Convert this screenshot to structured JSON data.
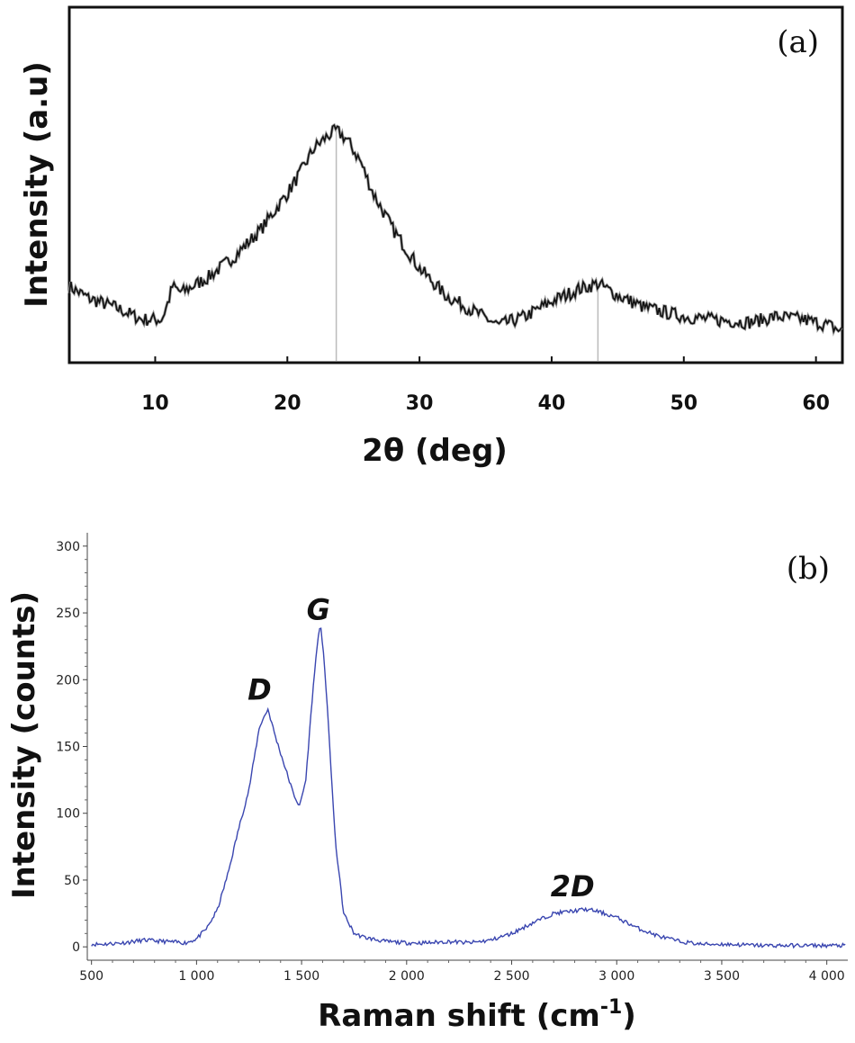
{
  "chart_data": [
    {
      "type": "line",
      "panel_label": "(a)",
      "xlabel": "2θ (deg)",
      "ylabel": "Intensity (a.u)",
      "xlim": [
        3.5,
        62
      ],
      "xticks": [
        10,
        20,
        30,
        40,
        50,
        60
      ],
      "yticks": [],
      "grid": false,
      "line_color": "#111111",
      "marker_color": "#bbbbbb",
      "markers_x": [
        23.7,
        43.5
      ],
      "series": [
        {
          "x": [
            3.5,
            5,
            7,
            9,
            10.5,
            11,
            11.3,
            12,
            14,
            16,
            18,
            20,
            21,
            22,
            23,
            23.7,
            24.5,
            25.5,
            26.5,
            28,
            30,
            32,
            34,
            36,
            38,
            40,
            42,
            43.5,
            45,
            47,
            50,
            52,
            55,
            57,
            59,
            61,
            62
          ],
          "values": [
            0.17,
            0.13,
            0.1,
            0.06,
            0.06,
            0.12,
            0.17,
            0.15,
            0.2,
            0.27,
            0.36,
            0.48,
            0.55,
            0.63,
            0.67,
            0.69,
            0.66,
            0.59,
            0.48,
            0.36,
            0.23,
            0.14,
            0.09,
            0.04,
            0.07,
            0.12,
            0.16,
            0.18,
            0.14,
            0.1,
            0.07,
            0.06,
            0.05,
            0.07,
            0.06,
            0.04,
            0.02
          ]
        }
      ]
    },
    {
      "type": "line",
      "panel_label": "(b)",
      "xlabel": "Raman shift (cm",
      "xlabel_sup": "-1",
      "xlabel_end": ")",
      "ylabel": "Intensity (counts)",
      "xlim": [
        480,
        4100
      ],
      "ylim": [
        -10,
        310
      ],
      "xticks": [
        500,
        1000,
        1500,
        2000,
        2500,
        3000,
        3500,
        4000
      ],
      "xtick_labels": [
        "500",
        "1 000",
        "1 500",
        "2 000",
        "2 500",
        "3 000",
        "3 500",
        "4 000"
      ],
      "yticks": [
        0,
        50,
        100,
        150,
        200,
        250,
        300
      ],
      "grid": false,
      "line_color": "#3a46b0",
      "annotations": [
        {
          "text": "D",
          "x": 1300,
          "y": 185
        },
        {
          "text": "G",
          "x": 1580,
          "y": 245
        },
        {
          "text": "2D",
          "x": 2790,
          "y": 38
        }
      ],
      "series": [
        {
          "x": [
            480,
            550,
            650,
            750,
            850,
            950,
            1000,
            1050,
            1100,
            1150,
            1200,
            1250,
            1300,
            1340,
            1380,
            1420,
            1460,
            1490,
            1520,
            1550,
            1575,
            1590,
            1605,
            1630,
            1660,
            1700,
            1750,
            1800,
            1900,
            2000,
            2100,
            2200,
            2300,
            2400,
            2500,
            2600,
            2700,
            2800,
            2850,
            2900,
            3000,
            3100,
            3200,
            3300,
            3400,
            3500,
            3700,
            3900,
            4100
          ],
          "values": [
            2,
            2,
            3,
            5,
            4,
            3,
            6,
            14,
            28,
            55,
            88,
            118,
            165,
            178,
            155,
            135,
            115,
            105,
            125,
            185,
            228,
            240,
            220,
            160,
            80,
            25,
            10,
            7,
            4,
            3,
            3,
            4,
            3,
            5,
            10,
            18,
            25,
            27,
            28,
            27,
            22,
            14,
            8,
            4,
            2,
            2,
            1,
            1,
            1
          ]
        }
      ]
    }
  ]
}
